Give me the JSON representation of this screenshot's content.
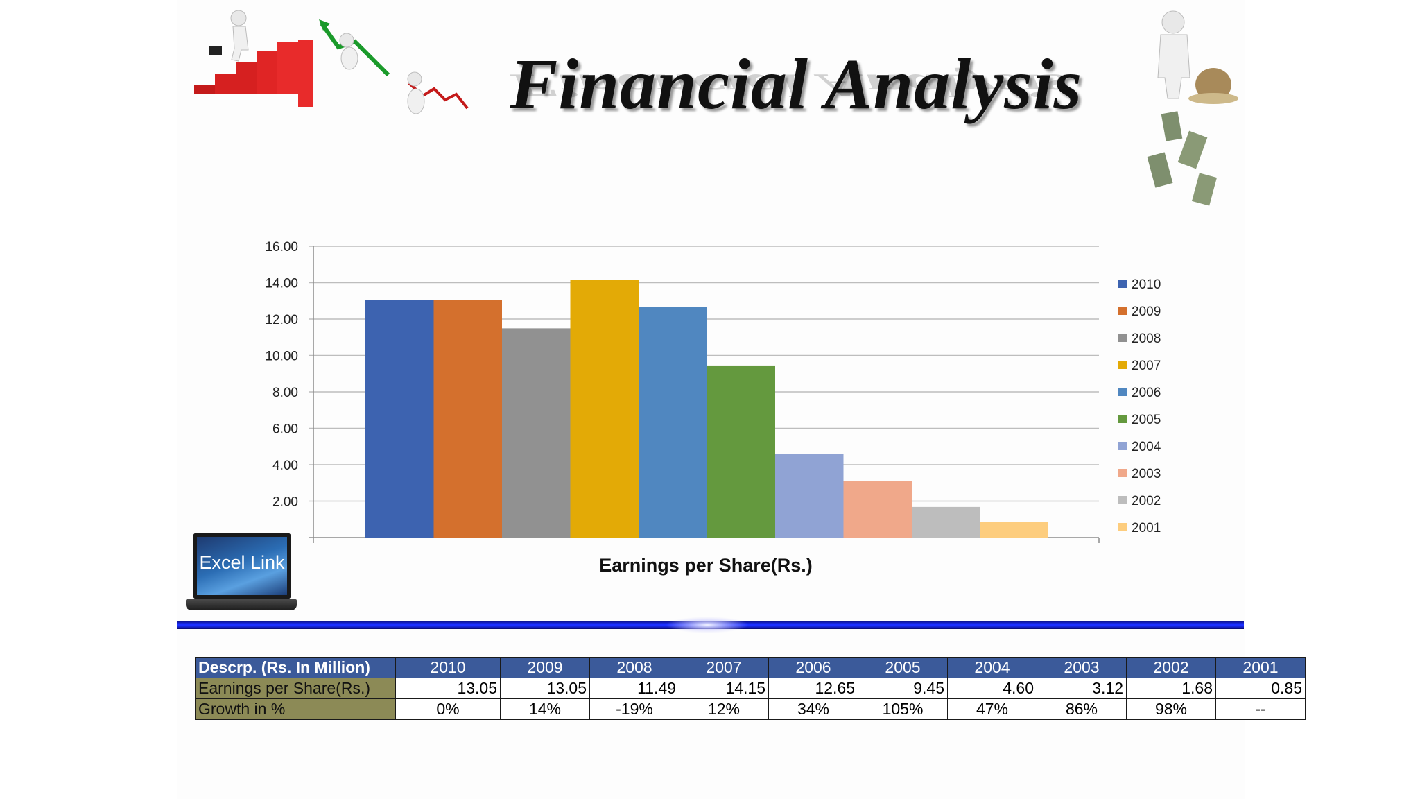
{
  "title": "Financial Analysis",
  "excel_link": "Excel Link",
  "chart_data": {
    "type": "bar",
    "xlabel": "Earnings per Share(Rs.)",
    "ylabel": "",
    "ylim": [
      0,
      16
    ],
    "yticks": [
      "16.00",
      "14.00",
      "12.00",
      "10.00",
      "8.00",
      "6.00",
      "4.00",
      "2.00"
    ],
    "grid": true,
    "legend_position": "right",
    "series": [
      {
        "name": "2010",
        "value": 13.05,
        "color": "#3d63b0"
      },
      {
        "name": "2009",
        "value": 13.05,
        "color": "#d4702d"
      },
      {
        "name": "2008",
        "value": 11.49,
        "color": "#919191"
      },
      {
        "name": "2007",
        "value": 14.15,
        "color": "#e3aa06"
      },
      {
        "name": "2006",
        "value": 12.65,
        "color": "#5087c0"
      },
      {
        "name": "2005",
        "value": 9.45,
        "color": "#64993e"
      },
      {
        "name": "2004",
        "value": 4.6,
        "color": "#90a3d4"
      },
      {
        "name": "2003",
        "value": 3.12,
        "color": "#f0a88a"
      },
      {
        "name": "2002",
        "value": 1.68,
        "color": "#bdbdbd"
      },
      {
        "name": "2001",
        "value": 0.85,
        "color": "#fdcd7e"
      }
    ]
  },
  "table": {
    "header_label": "Descrp. (Rs. In Million)",
    "years": [
      "2010",
      "2009",
      "2008",
      "2007",
      "2006",
      "2005",
      "2004",
      "2003",
      "2002",
      "2001"
    ],
    "rows": [
      {
        "label": "Earnings per Share(Rs.)",
        "align": "num",
        "values": [
          "13.05",
          "13.05",
          "11.49",
          "14.15",
          "12.65",
          "9.45",
          "4.60",
          "3.12",
          "1.68",
          "0.85"
        ]
      },
      {
        "label": "Growth in %",
        "align": "cen",
        "values": [
          "0%",
          "14%",
          "-19%",
          "12%",
          "34%",
          "105%",
          "47%",
          "86%",
          "98%",
          "--"
        ]
      }
    ]
  }
}
